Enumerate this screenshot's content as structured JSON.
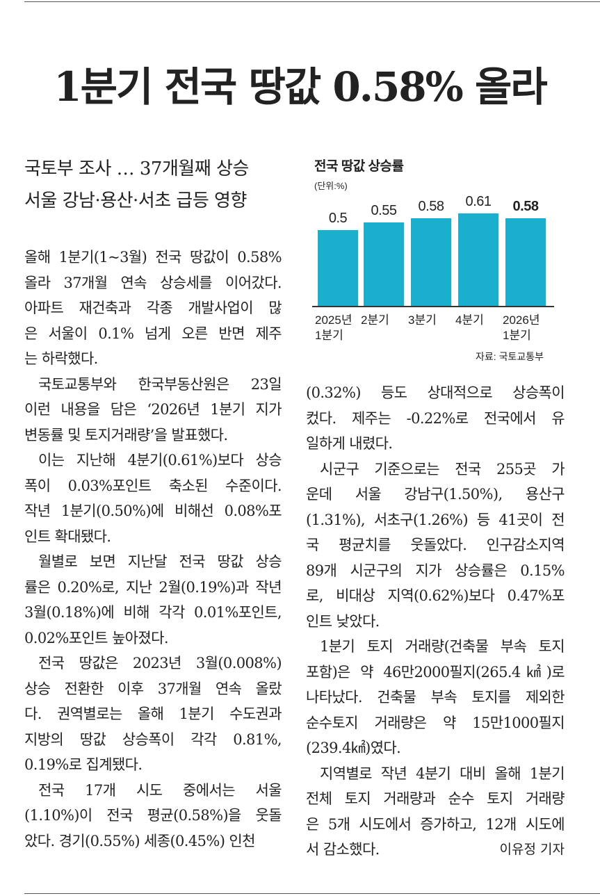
{
  "headline": "1분기 전국 땅값 0.58% 올라",
  "subheadlines": [
    "국토부 조사 … 37개월째 상승",
    "서울 강남·용산·서초 급등 영향"
  ],
  "chart_data": {
    "type": "bar",
    "title": "전국 땅값 상승률",
    "unit": "(단위:%)",
    "categories": [
      "2025년\n1분기",
      "2분기",
      "3분기",
      "4분기",
      "2026년\n1분기"
    ],
    "values": [
      0.5,
      0.55,
      0.58,
      0.61,
      0.58
    ],
    "color": "#1aafcc",
    "source": "자료: 국토교통부"
  },
  "left_column": [
    [
      "올해 1분기(1~3월) 전국 땅값이 0.58%",
      "올라 37개월 연속 상승세를 이어갔다.",
      "아파트 재건축과 각종 개발사업이 많",
      "은 서울이 0.1% 넘게 오른 반면 제주",
      "는 하락했다."
    ],
    [
      "국토교통부와 한국부동산원은 23일",
      "이런 내용을 담은 ‘2026년 1분기 지가",
      "변동률 및 토지거래량’을 발표했다."
    ],
    [
      "이는 지난해 4분기(0.61%)보다 상승",
      "폭이 0.03%포인트 축소된 수준이다.",
      "작년 1분기(0.50%)에 비해선 0.08%포",
      "인트 확대됐다."
    ],
    [
      "월별로 보면 지난달 전국 땅값 상승",
      "률은 0.20%로, 지난 2월(0.19%)과 작년",
      "3월(0.18%)에 비해 각각 0.01%포인트,",
      "0.02%포인트 높아졌다."
    ],
    [
      "전국 땅값은 2023년 3월(0.008%)",
      "상승 전환한 이후 37개월 연속 올랐",
      "다. 권역별로는 올해 1분기 수도권과",
      "지방의 땅값 상승폭이 각각 0.81%,",
      "0.19%로 집계됐다."
    ],
    [
      "전국 17개 시도 중에서는 서울",
      "(1.10%)이 전국 평균(0.58%)을 웃돌",
      "았다. 경기(0.55%) 세종(0.45%) 인천"
    ]
  ],
  "right_column": [
    [
      "(0.32%) 등도 상대적으로 상승폭이",
      "컸다. 제주는 -0.22%로 전국에서 유",
      "일하게 내렸다."
    ],
    [
      "시군구 기준으로는 전국 255곳 가",
      "운데 서울 강남구(1.50%), 용산구",
      "(1.31%), 서초구(1.26%) 등 41곳이 전",
      "국 평균치를 웃돌았다. 인구감소지역",
      "89개 시군구의 지가 상승률은 0.15%",
      "로, 비대상 지역(0.62%)보다 0.47%포",
      "인트 낮았다."
    ],
    [
      "1분기 토지 거래량(건축물 부속 토지",
      "포함)은 약 46만2000필지(265.4㎢)로",
      "나타났다. 건축물 부속 토지를 제외한",
      "순수토지 거래량은 약 15만1000필지",
      "(239.4㎢)였다."
    ],
    [
      "지역별로 작년 4분기 대비 올해 1분기",
      "전체 토지 거래량과 순수 토지 거래량",
      "은 5개 시도에서 증가하고, 12개 시도에",
      "서 감소했다."
    ]
  ],
  "byline": "이유정 기자"
}
